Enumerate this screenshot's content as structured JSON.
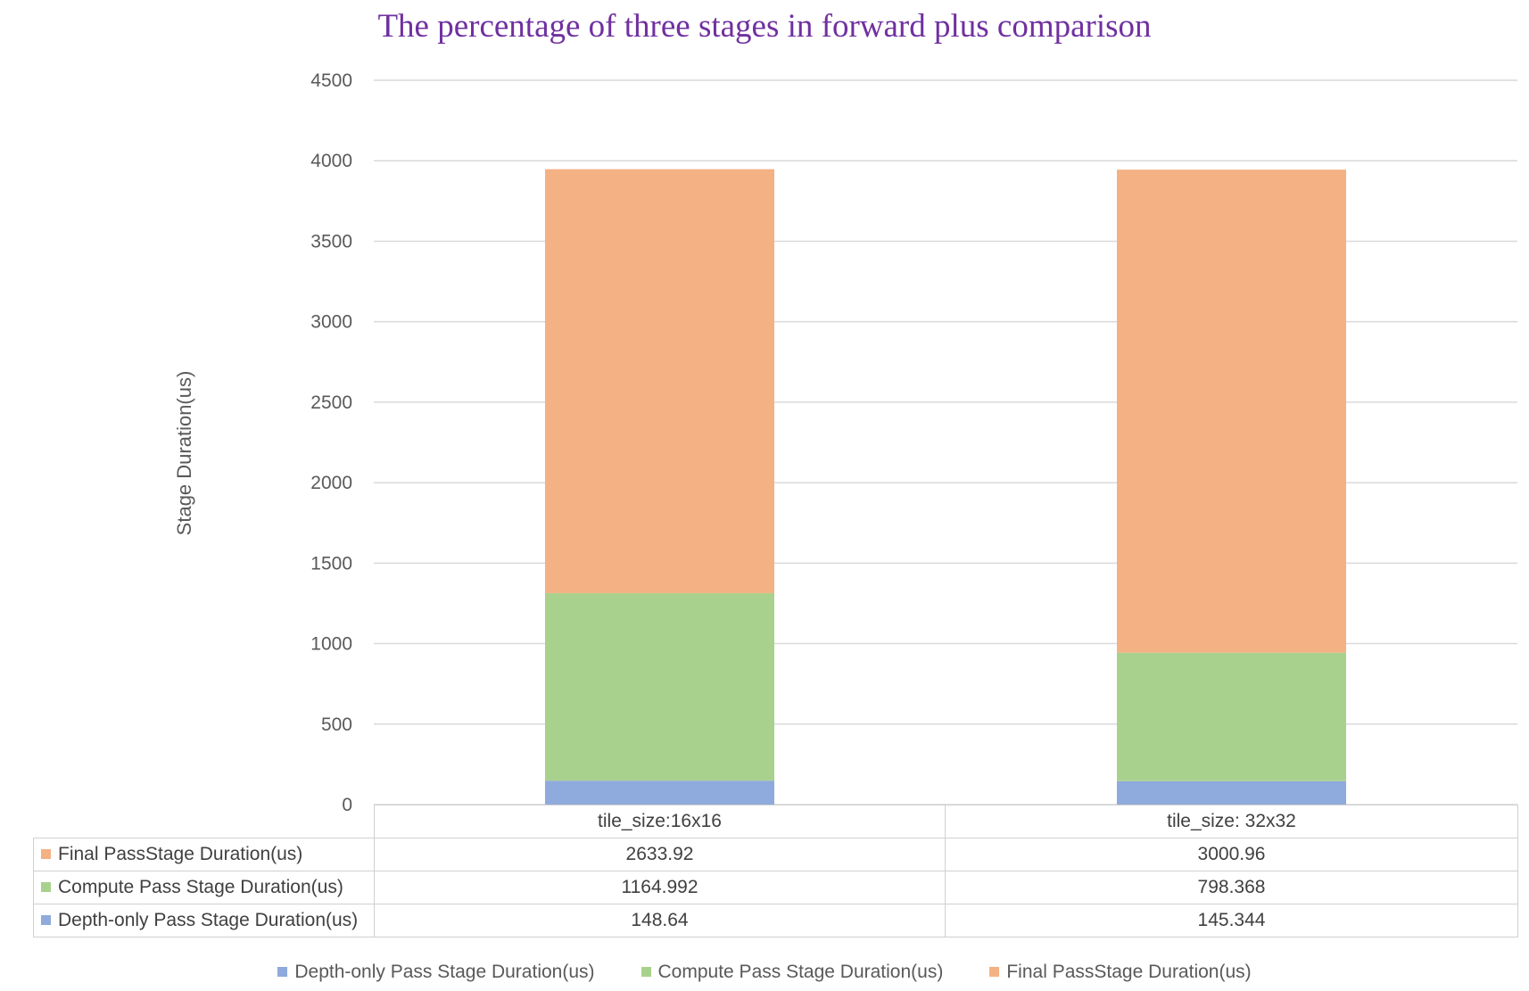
{
  "chart_data": {
    "type": "bar",
    "stacked": true,
    "title": "The percentage of three stages in forward plus comparison",
    "ylabel": "Stage Duration(us)",
    "xlabel": "",
    "ylim": [
      0,
      4500
    ],
    "yticks": [
      "0",
      "500",
      "1000",
      "1500",
      "2000",
      "2500",
      "3000",
      "3500",
      "4000",
      "4500"
    ],
    "grid": true,
    "legend_position": "bottom",
    "data_table": true,
    "categories": [
      "tile_size:16x16",
      "tile_size: 32x32"
    ],
    "series": [
      {
        "name": "Depth-only Pass Stage Duration(us)",
        "color": "#8faadc",
        "values": [
          148.64,
          145.344
        ],
        "labels": [
          "148.64",
          "145.344"
        ]
      },
      {
        "name": "Compute Pass Stage Duration(us)",
        "color": "#a9d18e",
        "values": [
          1164.992,
          798.368
        ],
        "labels": [
          "1164.992",
          "798.368"
        ]
      },
      {
        "name": "Final PassStage Duration(us)",
        "color": "#f4b183",
        "values": [
          2633.92,
          3000.96
        ],
        "labels": [
          "2633.92",
          "3000.96"
        ]
      }
    ]
  }
}
